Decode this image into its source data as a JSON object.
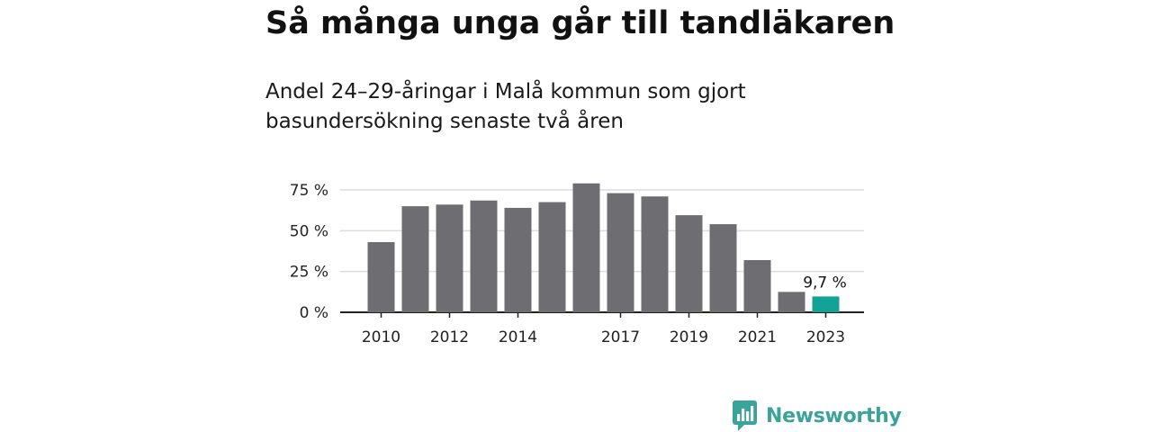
{
  "title": "Så många unga går till tandläkaren",
  "subtitle_lines": [
    "Andel 24–29-åringar i Malå kommun som gjort",
    "basundersökning senaste två åren"
  ],
  "brand": {
    "name": "Newsworthy",
    "icon": "newsworthy-chart-logo-icon",
    "color": "#3aa39a"
  },
  "chart_data": {
    "type": "bar",
    "title": "Så många unga går till tandläkaren",
    "subtitle": "Andel 24–29-åringar i Malå kommun som gjort basundersökning senaste två åren",
    "categories": [
      "2010",
      "2011",
      "2012",
      "2013",
      "2014",
      "2015",
      "2016",
      "2017",
      "2018",
      "2019",
      "2020",
      "2021",
      "2022",
      "2023"
    ],
    "values": [
      43,
      65,
      66,
      68.5,
      64,
      67.5,
      79,
      73,
      71,
      59.5,
      54,
      32,
      12.5,
      9.7
    ],
    "x_tick_labels": [
      "2010",
      "2012",
      "2014",
      "2017",
      "2019",
      "2021",
      "2023"
    ],
    "y_ticks": [
      0,
      25,
      50,
      75
    ],
    "y_tick_labels": [
      "0 %",
      "25 %",
      "50 %",
      "75 %"
    ],
    "ylim": [
      0,
      80
    ],
    "grid": true,
    "bar_color": "#6e6d72",
    "highlight_color": "#13a396",
    "highlight_index": 13,
    "annotation": "9,7 %",
    "xlabel": "",
    "ylabel": ""
  }
}
